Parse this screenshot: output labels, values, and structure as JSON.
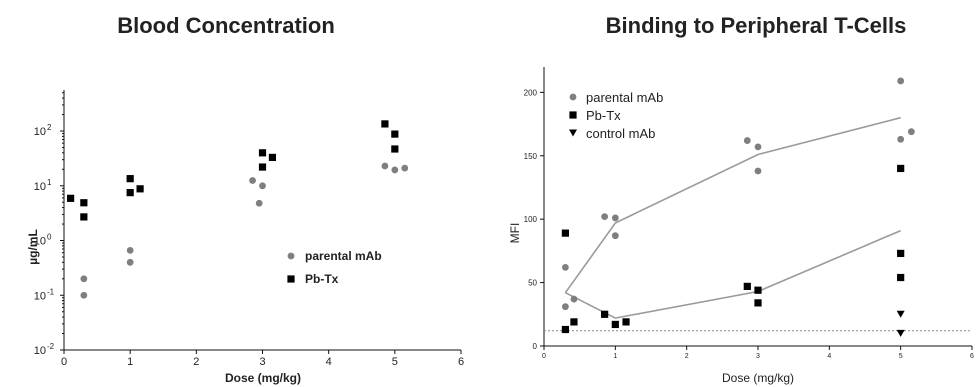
{
  "colors": {
    "parental": "#7f7f7f",
    "pbtx": "#000000",
    "control": "#000000",
    "fit_line": "#9a9a9a",
    "baseline": "#8a8a8a"
  },
  "chart_data": [
    {
      "type": "scatter",
      "title": "Blood Concentration",
      "xlabel": "Dose (mg/kg)",
      "ylabel": "µg/mL",
      "xlim": [
        0,
        6
      ],
      "ylim_log10": [
        -2,
        2.75
      ],
      "yscale": "log",
      "x_ticks": [
        "0",
        "1",
        "2",
        "3",
        "4",
        "5",
        "6"
      ],
      "y_ticks": [
        {
          "label": "10",
          "exp": "-2",
          "value": 0.01
        },
        {
          "label": "10",
          "exp": "-1",
          "value": 0.1
        },
        {
          "label": "10",
          "exp": "0",
          "value": 1
        },
        {
          "label": "10",
          "exp": "1",
          "value": 10
        },
        {
          "label": "10",
          "exp": "2",
          "value": 100
        }
      ],
      "legend": {
        "position": "center-right",
        "entries": [
          "parental mAb",
          "Pb-Tx"
        ]
      },
      "series": [
        {
          "name": "parental mAb",
          "marker": "circle",
          "points": [
            [
              0.3,
              0.2
            ],
            [
              0.3,
              0.1
            ],
            [
              1.0,
              0.66
            ],
            [
              1.0,
              0.4
            ],
            [
              2.85,
              12.5
            ],
            [
              2.95,
              4.8
            ],
            [
              3.0,
              10.0
            ],
            [
              4.85,
              23
            ],
            [
              5.0,
              19.5
            ],
            [
              5.15,
              21
            ]
          ]
        },
        {
          "name": "Pb-Tx",
          "marker": "square",
          "points": [
            [
              0.1,
              5.9
            ],
            [
              0.3,
              4.9
            ],
            [
              0.3,
              2.7
            ],
            [
              1.0,
              13.5
            ],
            [
              1.0,
              7.5
            ],
            [
              1.15,
              8.8
            ],
            [
              3.0,
              40
            ],
            [
              3.0,
              22
            ],
            [
              3.15,
              33
            ],
            [
              4.85,
              135
            ],
            [
              5.0,
              88
            ],
            [
              5.0,
              47
            ]
          ]
        }
      ]
    },
    {
      "type": "scatter",
      "title": "Binding to Peripheral T-Cells",
      "xlabel": "Dose (mg/kg)",
      "ylabel": "MFI",
      "xlim": [
        0,
        6
      ],
      "ylim": [
        0,
        220
      ],
      "x_ticks": [
        "0",
        "1",
        "2",
        "3",
        "4",
        "5",
        "6"
      ],
      "y_ticks": [
        "0",
        "50",
        "100",
        "150",
        "200"
      ],
      "legend": {
        "position": "top-left",
        "entries": [
          "parental mAb",
          "Pb-Tx",
          "control mAb"
        ]
      },
      "series": [
        {
          "name": "parental mAb",
          "marker": "circle",
          "points": [
            [
              0.3,
              62
            ],
            [
              0.3,
              31
            ],
            [
              0.42,
              37
            ],
            [
              0.85,
              102
            ],
            [
              1.0,
              101
            ],
            [
              1.0,
              87
            ],
            [
              2.85,
              162
            ],
            [
              3.0,
              157
            ],
            [
              3.0,
              138
            ],
            [
              5.0,
              209
            ],
            [
              5.0,
              163
            ],
            [
              5.15,
              169
            ]
          ],
          "fit": [
            [
              0.3,
              42
            ],
            [
              1.0,
              97
            ],
            [
              3.0,
              151
            ],
            [
              5.0,
              180
            ]
          ]
        },
        {
          "name": "Pb-Tx",
          "marker": "square",
          "points": [
            [
              0.3,
              89
            ],
            [
              0.3,
              13
            ],
            [
              0.42,
              19
            ],
            [
              0.85,
              25
            ],
            [
              1.0,
              17
            ],
            [
              1.15,
              19
            ],
            [
              2.85,
              47
            ],
            [
              3.0,
              44
            ],
            [
              3.0,
              34
            ],
            [
              5.0,
              140
            ],
            [
              5.0,
              73
            ],
            [
              5.0,
              54
            ]
          ],
          "fit": [
            [
              0.3,
              42
            ],
            [
              1.0,
              22
            ],
            [
              3.0,
              43
            ],
            [
              5.0,
              91
            ]
          ]
        },
        {
          "name": "control mAb",
          "marker": "triangle-down",
          "points": [
            [
              5.0,
              25
            ],
            [
              5.0,
              10
            ]
          ],
          "baseline": 12
        }
      ]
    }
  ]
}
